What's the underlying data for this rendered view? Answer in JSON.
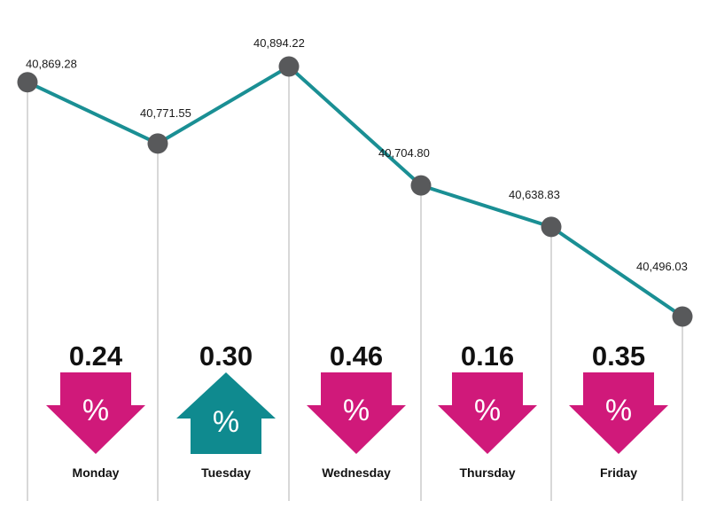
{
  "chart_data": {
    "type": "line",
    "categories": [
      "Monday",
      "Tuesday",
      "Wednesday",
      "Thursday",
      "Friday"
    ],
    "points": [
      {
        "value": 40869.28,
        "label": "40,869.28"
      },
      {
        "value": 40771.55,
        "label": "40,771.55"
      },
      {
        "value": 40894.22,
        "label": "40,894.22"
      },
      {
        "value": 40704.8,
        "label": "40,704.80"
      },
      {
        "value": 40638.83,
        "label": "40,638.83"
      },
      {
        "value": 40496.03,
        "label": "40,496.03"
      }
    ],
    "changes": [
      {
        "day": "Monday",
        "value": "0.24",
        "direction": "down"
      },
      {
        "day": "Tuesday",
        "value": "0.30",
        "direction": "up"
      },
      {
        "day": "Wednesday",
        "value": "0.46",
        "direction": "down"
      },
      {
        "day": "Thursday",
        "value": "0.16",
        "direction": "down"
      },
      {
        "day": "Friday",
        "value": "0.35",
        "direction": "down"
      }
    ],
    "percent_symbol": "%",
    "colors": {
      "line": "#1a8f94",
      "marker": "#58595b",
      "guide": "#bdbdbd",
      "down_arrow": "#d0197a",
      "up_arrow": "#0f8a8f"
    },
    "ylim": [
      40400,
      40950
    ],
    "grid": false,
    "legend": "none"
  }
}
